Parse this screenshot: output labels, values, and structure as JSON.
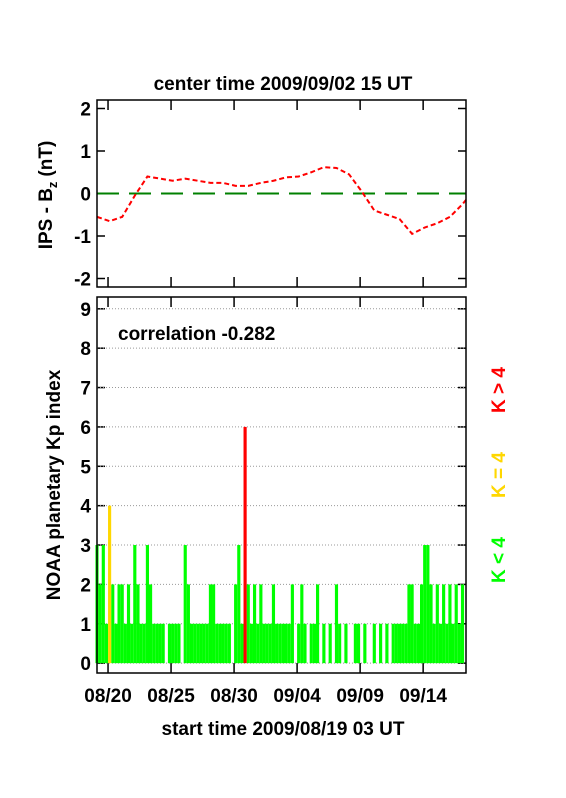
{
  "chart_data": [
    {
      "type": "line",
      "title": "center time 2009/09/02 15 UT",
      "ylabel": "IPS - B",
      "ylabel_sub": "z",
      "ylabel_unit": "(nT)",
      "xlim": [
        0.125,
        29.4
      ],
      "ylim": [
        -2.2,
        2.2
      ],
      "yticks": [
        -2,
        -1,
        0,
        1,
        2
      ],
      "hline": {
        "value": 0,
        "color": "#008000"
      },
      "x": [
        0.125,
        1.125,
        2.125,
        3.125,
        4.125,
        5.125,
        6.125,
        7.125,
        8.125,
        9.125,
        10.125,
        11.125,
        12.125,
        13.125,
        14.125,
        15.125,
        16.125,
        17.125,
        18.125,
        19.125,
        20.125,
        21.125,
        22.125,
        23.125,
        24.125,
        25.125,
        26.125,
        27.125,
        28.125,
        29.125,
        29.4
      ],
      "series": [
        {
          "color": "#ff0000",
          "values": [
            -0.55,
            -0.65,
            -0.55,
            -0.05,
            0.4,
            0.35,
            0.3,
            0.35,
            0.3,
            0.25,
            0.25,
            0.18,
            0.18,
            0.25,
            0.3,
            0.38,
            0.4,
            0.5,
            0.62,
            0.6,
            0.45,
            0.05,
            -0.4,
            -0.5,
            -0.6,
            -0.95,
            -0.8,
            -0.7,
            -0.55,
            -0.25,
            -0.15
          ]
        }
      ]
    },
    {
      "type": "bar",
      "annotation": "correlation -0.282",
      "xlabel": "start time 2009/08/19 03 UT",
      "ylabel": "NOAA planetary Kp index",
      "xlim": [
        0.125,
        29.4
      ],
      "ylim": [
        -0.25,
        9.3
      ],
      "yticks": [
        0,
        1,
        2,
        3,
        4,
        5,
        6,
        7,
        8,
        9
      ],
      "grid": true,
      "xticks": [
        {
          "value": 1,
          "label": "08/20"
        },
        {
          "value": 6,
          "label": "08/25"
        },
        {
          "value": 11,
          "label": "08/30"
        },
        {
          "value": 16,
          "label": "09/04"
        },
        {
          "value": 21,
          "label": "09/09"
        },
        {
          "value": 26,
          "label": "09/14"
        }
      ],
      "series": [
        {
          "name": "K < 4",
          "color": "#00ff00",
          "x": [
            0.125,
            0.375,
            0.625,
            0.875,
            1.125,
            1.375,
            1.625,
            1.875,
            2.125,
            2.375,
            2.625,
            2.875,
            3.125,
            3.375,
            3.625,
            3.875,
            4.125,
            4.375,
            4.625,
            4.875,
            5.125,
            5.375,
            5.625,
            5.875,
            6.125,
            6.375,
            6.625,
            6.875,
            7.125,
            7.375,
            7.625,
            7.875,
            8.125,
            8.375,
            8.625,
            8.875,
            9.125,
            9.375,
            9.625,
            9.875,
            10.125,
            10.375,
            10.625,
            10.875,
            11.125,
            11.375,
            11.625,
            11.875,
            12.125,
            12.375,
            12.625,
            12.875,
            13.125,
            13.375,
            13.625,
            13.875,
            14.125,
            14.375,
            14.625,
            14.875,
            15.125,
            15.375,
            15.625,
            15.875,
            16.125,
            16.375,
            16.625,
            16.875,
            17.125,
            17.375,
            17.625,
            17.875,
            18.125,
            18.375,
            18.625,
            18.875,
            19.125,
            19.375,
            19.625,
            19.875,
            20.125,
            20.375,
            20.625,
            20.875,
            21.125,
            21.375,
            21.625,
            21.875,
            22.125,
            22.375,
            22.625,
            22.875,
            23.125,
            23.375,
            23.625,
            23.875,
            24.125,
            24.375,
            24.625,
            24.875,
            25.125,
            25.375,
            25.625,
            25.875,
            26.125,
            26.375,
            26.625,
            26.875,
            27.125,
            27.375,
            27.625,
            27.875,
            28.125,
            28.375,
            28.625,
            28.875,
            29.125
          ],
          "values": [
            3,
            2,
            3,
            1,
            null,
            2,
            1,
            2,
            2,
            1,
            2,
            1,
            3,
            2,
            1,
            1,
            3,
            2,
            1,
            1,
            1,
            1,
            0,
            1,
            1,
            1,
            1,
            0,
            3,
            2,
            1,
            1,
            1,
            1,
            1,
            1,
            2,
            2,
            1,
            1,
            1,
            1,
            1,
            0,
            2,
            3,
            1,
            null,
            2,
            1,
            2,
            1,
            2,
            1,
            1,
            1,
            2,
            1,
            1,
            1,
            1,
            1,
            2,
            0,
            1,
            2,
            1,
            0,
            1,
            1,
            2,
            0,
            1,
            0,
            1,
            0,
            2,
            1,
            0,
            1,
            0,
            0,
            1,
            1,
            0,
            1,
            0,
            0,
            1,
            0,
            1,
            0,
            1,
            0,
            1,
            1,
            1,
            1,
            1,
            2,
            2,
            1,
            1,
            2,
            3,
            3,
            2,
            1,
            2,
            1,
            2,
            1,
            2,
            1,
            2,
            1,
            2
          ]
        },
        {
          "name": "K = 4",
          "color": "#ffd700",
          "x": [
            1.125
          ],
          "values": [
            4
          ]
        },
        {
          "name": "K > 4",
          "color": "#ff0000",
          "x": [
            11.875
          ],
          "values": [
            6
          ]
        }
      ]
    }
  ]
}
